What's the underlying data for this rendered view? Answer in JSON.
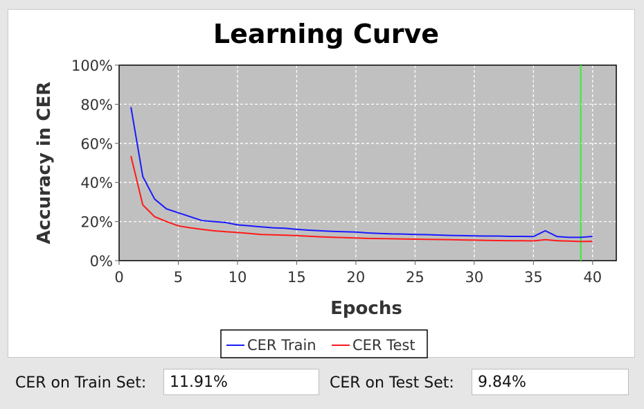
{
  "colors": {
    "train": "#1a1aff",
    "test": "#ff1a1a",
    "marker": "#33ee33",
    "plot_bg": "#c0c0c0",
    "grid": "#ffffff"
  },
  "chart_data": {
    "type": "line",
    "title": "Learning Curve",
    "xlabel": "Epochs",
    "ylabel": "Accuracy in CER",
    "xlim": [
      0,
      42
    ],
    "ylim": [
      0,
      100
    ],
    "x_ticks": [
      0,
      5,
      10,
      15,
      20,
      25,
      30,
      35,
      40
    ],
    "y_ticks": [
      0,
      20,
      40,
      60,
      80,
      100
    ],
    "y_tick_format": "%",
    "grid": true,
    "legend_position": "bottom",
    "vertical_marker_x": 39,
    "x": [
      1,
      2,
      3,
      4,
      5,
      6,
      7,
      8,
      9,
      10,
      11,
      12,
      13,
      14,
      15,
      16,
      17,
      18,
      19,
      20,
      21,
      22,
      23,
      24,
      25,
      26,
      27,
      28,
      29,
      30,
      31,
      32,
      33,
      34,
      35,
      36,
      37,
      38,
      39,
      40
    ],
    "series": [
      {
        "name": "CER Train",
        "color_key": "train",
        "values": [
          78.5,
          43.0,
          31.5,
          26.5,
          24.5,
          22.5,
          20.5,
          20.0,
          19.5,
          18.3,
          17.8,
          17.3,
          16.8,
          16.6,
          16.0,
          15.6,
          15.3,
          15.0,
          14.8,
          14.6,
          14.2,
          13.9,
          13.7,
          13.6,
          13.4,
          13.3,
          13.1,
          12.9,
          12.8,
          12.7,
          12.6,
          12.6,
          12.4,
          12.4,
          12.3,
          15.3,
          12.3,
          11.9,
          11.9,
          12.4
        ]
      },
      {
        "name": "CER Test",
        "color_key": "test",
        "values": [
          53.5,
          28.5,
          22.5,
          20.0,
          17.8,
          16.8,
          16.0,
          15.3,
          14.8,
          14.4,
          13.9,
          13.4,
          13.2,
          13.0,
          12.8,
          12.5,
          12.2,
          12.0,
          11.8,
          11.6,
          11.4,
          11.3,
          11.2,
          11.1,
          11.0,
          10.9,
          10.8,
          10.7,
          10.6,
          10.5,
          10.4,
          10.3,
          10.2,
          10.2,
          10.1,
          10.7,
          10.2,
          10.0,
          9.8,
          9.9
        ]
      }
    ]
  },
  "stats": {
    "train_label": "CER on Train Set:",
    "train_value": "11.91%",
    "test_label": "CER on Test Set:",
    "test_value": "9.84%"
  }
}
